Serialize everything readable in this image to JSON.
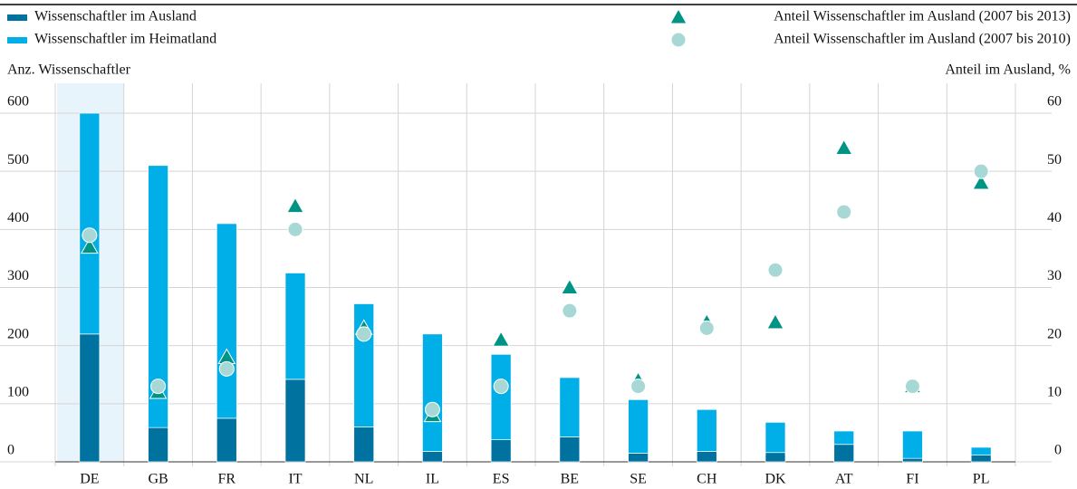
{
  "chart_data": {
    "type": "bar",
    "stacked": true,
    "y_label": "Anz. Wissenschaftler",
    "y2_label": "Anteil im Ausland, %",
    "categories": [
      "DE",
      "GB",
      "FR",
      "IT",
      "NL",
      "IL",
      "ES",
      "BE",
      "SE",
      "CH",
      "DK",
      "AT",
      "FI",
      "PL"
    ],
    "series": [
      {
        "name": "Wissenschaftler im Ausland",
        "type": "bar",
        "color": "#00729f",
        "values": [
          220,
          59,
          75,
          142,
          60,
          18,
          38,
          43,
          15,
          18,
          16,
          30,
          6,
          12
        ]
      },
      {
        "name": "Wissenschaftler im Heimatland",
        "type": "bar",
        "color": "#00aee8",
        "values": [
          380,
          451,
          335,
          183,
          212,
          202,
          147,
          102,
          92,
          72,
          52,
          23,
          47,
          13
        ]
      },
      {
        "name": "Anteil Wissenschaftler im Ausland (2007 bis 2013)",
        "type": "scatter",
        "marker": "triangle",
        "axis": "y2",
        "color": "#009485",
        "values": [
          37,
          12,
          18,
          44,
          23,
          8,
          21,
          30,
          14,
          24,
          24,
          54,
          13,
          48
        ]
      },
      {
        "name": "Anteil Wissenschaftler im Ausland (2007 bis 2010)",
        "type": "scatter",
        "marker": "circle",
        "axis": "y2",
        "color": "#a8d8d5",
        "values": [
          39,
          13,
          16,
          40,
          22,
          9,
          13,
          26,
          13,
          23,
          33,
          43,
          13,
          50
        ]
      }
    ],
    "ylim": [
      0,
      600
    ],
    "yticks": [
      0,
      100,
      200,
      300,
      400,
      500,
      600
    ],
    "y2lim": [
      0,
      60
    ],
    "y2ticks": [
      0,
      10,
      20,
      30,
      40,
      50,
      60
    ],
    "grid": true
  }
}
